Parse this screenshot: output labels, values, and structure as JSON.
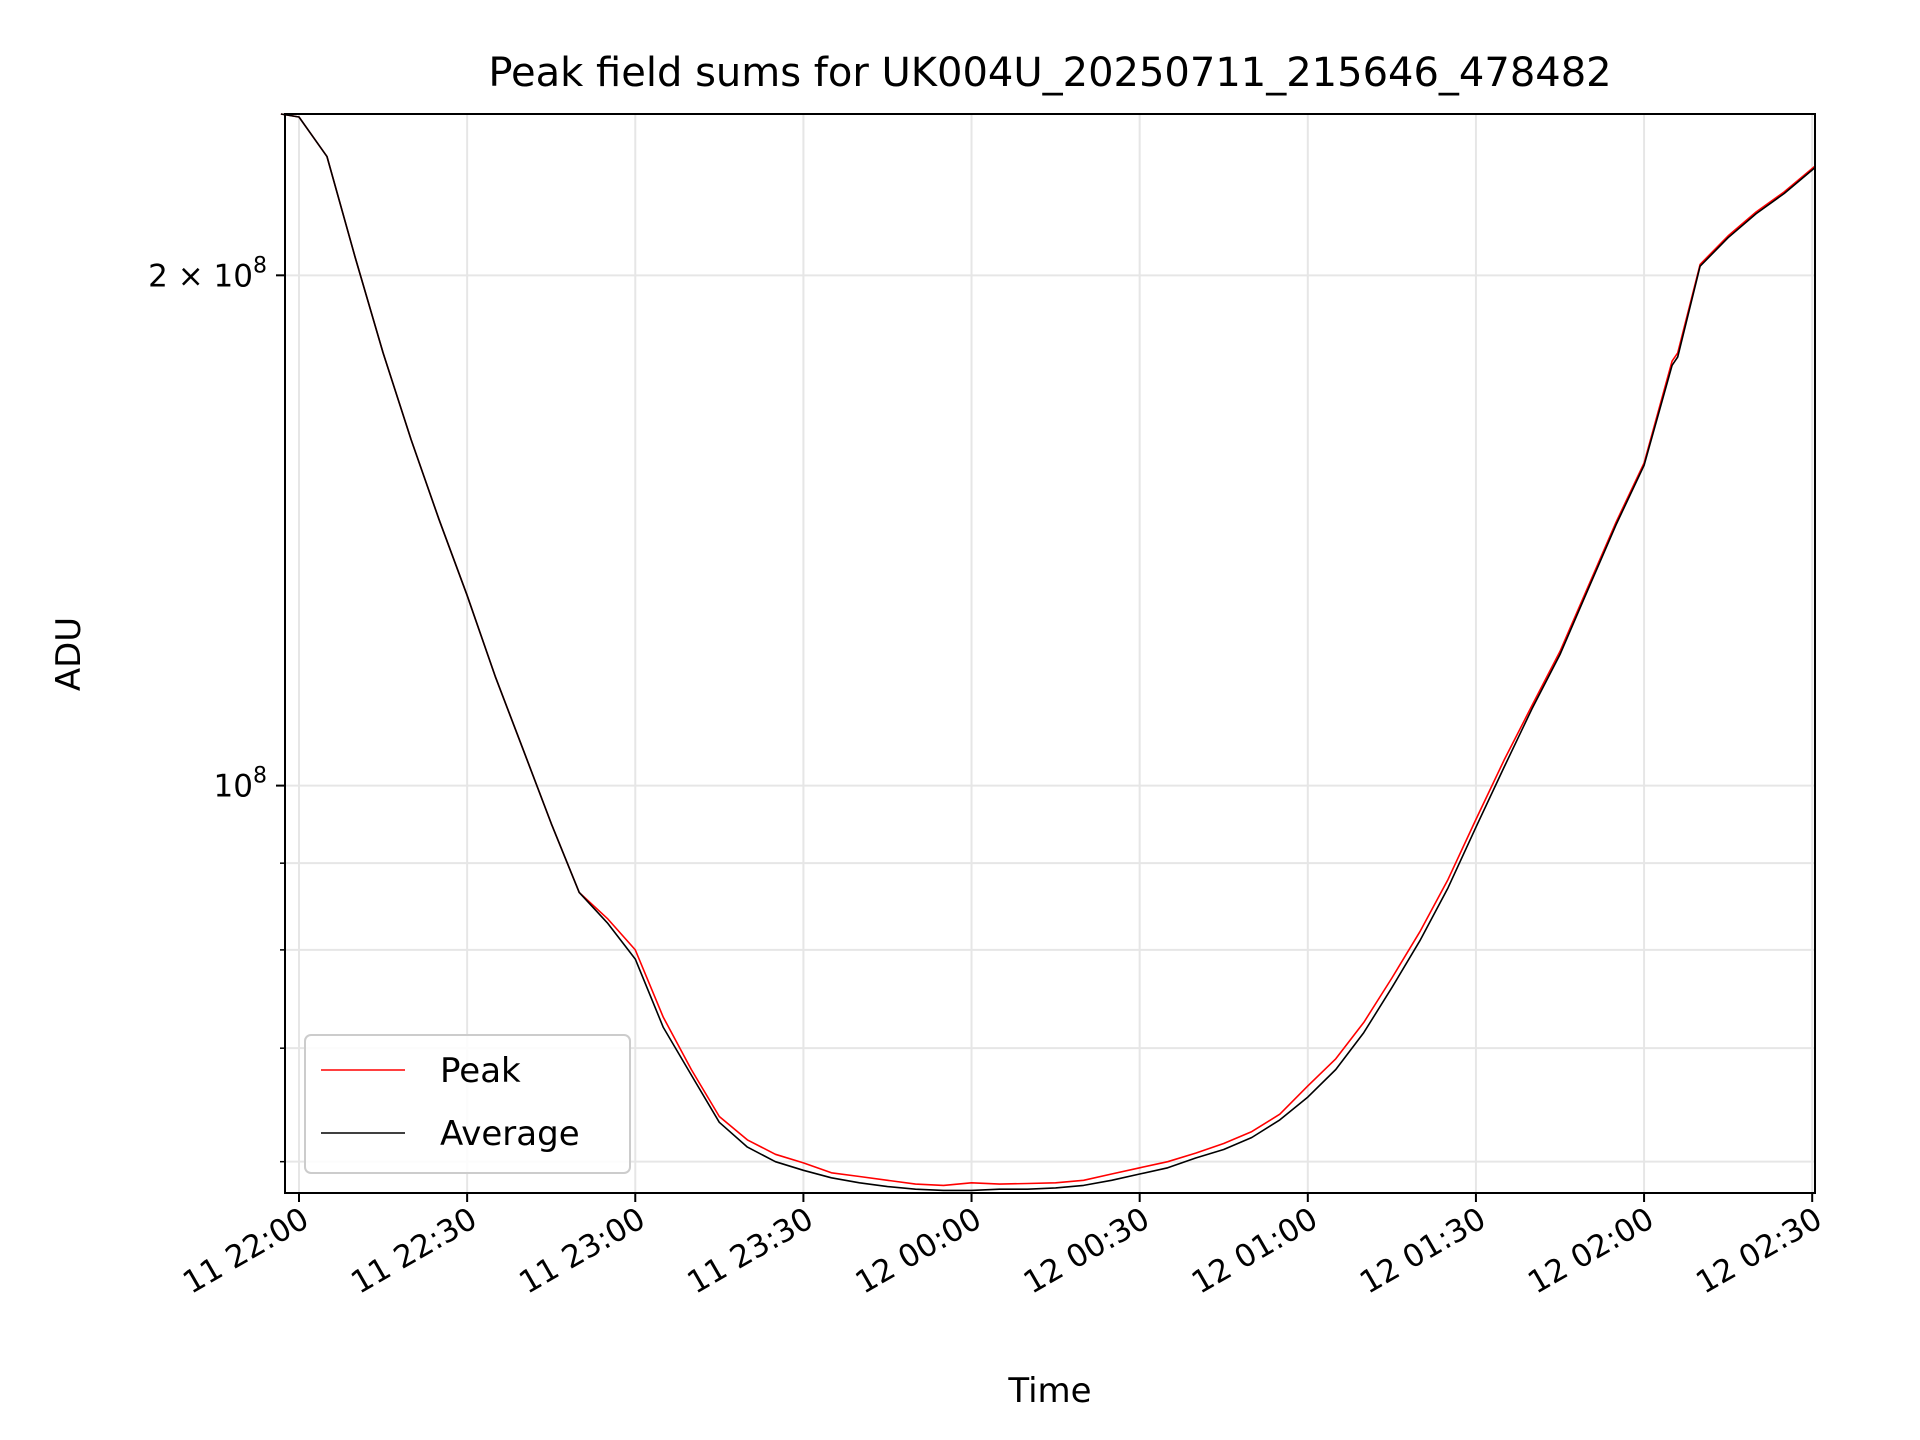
{
  "chart_data": {
    "type": "line",
    "title": "Peak field sums for UK004U_20250711_215646_478482",
    "xlabel": "Time",
    "ylabel": "ADU",
    "yscale": "log",
    "ylim": [
      57500000,
      249000000
    ],
    "xlim": [
      "2025-07-11 21:57:30",
      "2025-07-12 02:30:30"
    ],
    "grid": true,
    "legend_position": "lower-left",
    "x_ticks": [
      "11 22:00",
      "11 22:30",
      "11 23:00",
      "11 23:30",
      "12 00:00",
      "12 00:30",
      "12 01:00",
      "12 01:30",
      "12 02:00",
      "12 02:30"
    ],
    "y_ticks": [
      {
        "value": 100000000,
        "label_base": "10",
        "label_exp": "8"
      },
      {
        "value": 200000000,
        "label_base": "2 × 10",
        "label_exp": "8"
      }
    ],
    "y_minor_ticks": [
      60000000,
      70000000,
      80000000,
      90000000
    ],
    "x": [
      "2025-07-11 21:56:46",
      "2025-07-11 22:00:00",
      "2025-07-11 22:05:00",
      "2025-07-11 22:10:00",
      "2025-07-11 22:15:00",
      "2025-07-11 22:20:00",
      "2025-07-11 22:25:00",
      "2025-07-11 22:30:00",
      "2025-07-11 22:35:00",
      "2025-07-11 22:40:00",
      "2025-07-11 22:45:00",
      "2025-07-11 22:50:00",
      "2025-07-11 22:55:00",
      "2025-07-11 23:00:00",
      "2025-07-11 23:05:00",
      "2025-07-11 23:10:00",
      "2025-07-11 23:15:00",
      "2025-07-11 23:20:00",
      "2025-07-11 23:25:00",
      "2025-07-11 23:30:00",
      "2025-07-11 23:35:00",
      "2025-07-11 23:40:00",
      "2025-07-11 23:45:00",
      "2025-07-11 23:50:00",
      "2025-07-11 23:55:00",
      "2025-07-12 00:00:00",
      "2025-07-12 00:05:00",
      "2025-07-12 00:10:00",
      "2025-07-12 00:15:00",
      "2025-07-12 00:20:00",
      "2025-07-12 00:25:00",
      "2025-07-12 00:30:00",
      "2025-07-12 00:35:00",
      "2025-07-12 00:40:00",
      "2025-07-12 00:45:00",
      "2025-07-12 00:50:00",
      "2025-07-12 00:55:00",
      "2025-07-12 01:00:00",
      "2025-07-12 01:05:00",
      "2025-07-12 01:10:00",
      "2025-07-12 01:15:00",
      "2025-07-12 01:20:00",
      "2025-07-12 01:25:00",
      "2025-07-12 01:30:00",
      "2025-07-12 01:35:00",
      "2025-07-12 01:40:00",
      "2025-07-12 01:45:00",
      "2025-07-12 01:50:00",
      "2025-07-12 01:55:00",
      "2025-07-12 02:00:00",
      "2025-07-12 02:05:00",
      "2025-07-12 02:06:00",
      "2025-07-12 02:10:00",
      "2025-07-12 02:15:00",
      "2025-07-12 02:20:00",
      "2025-07-12 02:25:00",
      "2025-07-12 02:30:30"
    ],
    "series": [
      {
        "name": "Peak",
        "color": "#ff0000",
        "values": [
          249000000,
          248000000,
          235000000,
          205000000,
          180000000,
          160000000,
          143500000,
          129500000,
          116000000,
          105000000,
          95000000,
          86500000,
          83500000,
          80000000,
          73000000,
          68000000,
          63800000,
          61800000,
          60600000,
          59900000,
          59100000,
          58800000,
          58500000,
          58200000,
          58100000,
          58300000,
          58200000,
          58250000,
          58300000,
          58500000,
          59000000,
          59500000,
          60000000,
          60700000,
          61500000,
          62500000,
          64000000,
          66500000,
          69000000,
          72500000,
          77000000,
          82000000,
          88000000,
          95500000,
          103500000,
          111500000,
          120000000,
          131000000,
          143000000,
          155000000,
          178000000,
          180000000,
          203000000,
          211000000,
          218000000,
          224000000,
          232000000
        ]
      },
      {
        "name": "Average",
        "color": "#000000",
        "values": [
          249000000,
          248000000,
          235000000,
          205000000,
          180000000,
          160000000,
          143500000,
          129500000,
          116000000,
          105000000,
          95000000,
          86500000,
          83000000,
          79000000,
          72000000,
          67500000,
          63300000,
          61200000,
          60000000,
          59300000,
          58700000,
          58300000,
          58000000,
          57800000,
          57700000,
          57700000,
          57800000,
          57800000,
          57900000,
          58100000,
          58500000,
          59000000,
          59500000,
          60300000,
          61000000,
          62000000,
          63500000,
          65500000,
          68000000,
          71500000,
          76000000,
          81000000,
          87000000,
          94500000,
          102500000,
          111000000,
          119500000,
          130500000,
          142500000,
          154500000,
          177000000,
          179000000,
          202500000,
          210500000,
          217500000,
          223500000,
          231500000
        ]
      }
    ]
  }
}
